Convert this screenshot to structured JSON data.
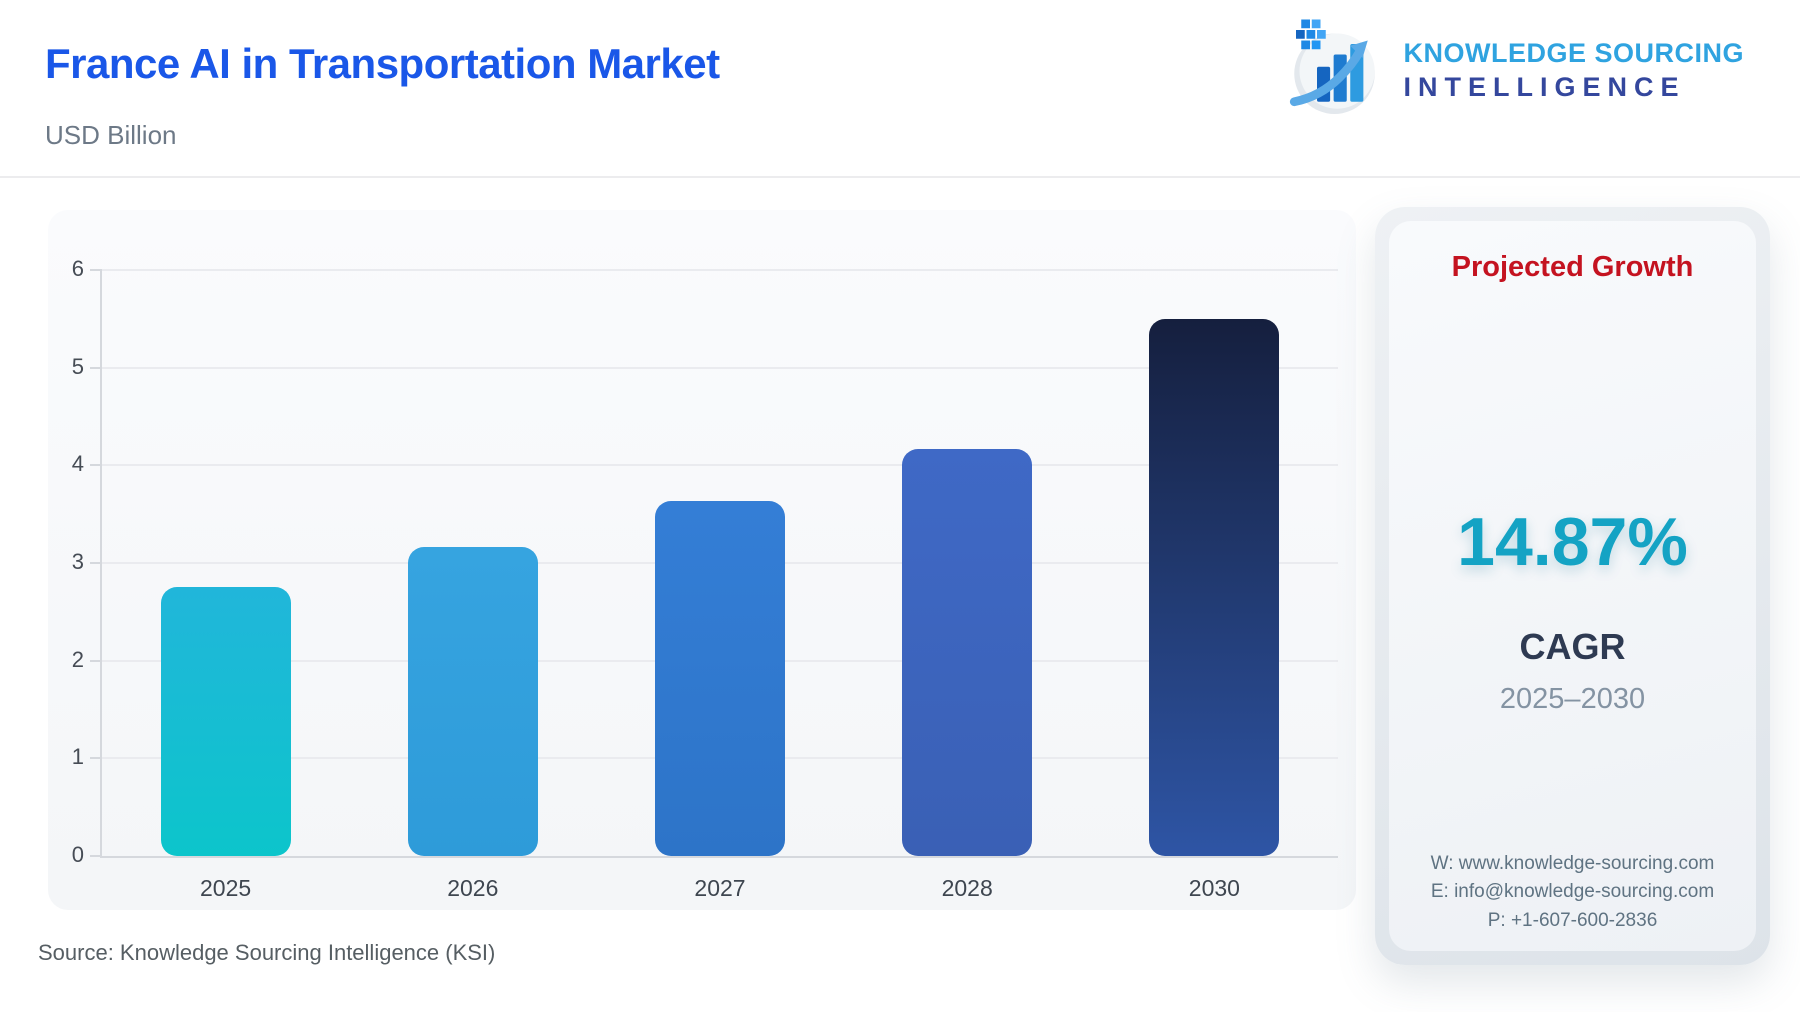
{
  "header": {
    "title": "France AI in Transportation Market",
    "subtitle": "USD Billion",
    "logo": {
      "line1": "KNOWLEDGE SOURCING",
      "line2": "INTELLIGENCE"
    }
  },
  "chart_data": {
    "type": "bar",
    "title": "France AI in Transportation Market",
    "ylabel": "USD Billion",
    "xlabel": "",
    "categories": [
      "2025",
      "2026",
      "2027",
      "2028",
      "2030"
    ],
    "values": [
      2.75,
      3.16,
      3.63,
      4.17,
      5.5
    ],
    "ylim": [
      0,
      6
    ],
    "yticks": [
      0,
      1,
      2,
      3,
      4,
      5,
      6
    ],
    "grid": true,
    "legend": "none",
    "bar_colors": [
      {
        "top": "#21b6da",
        "bottom": "#0cc5cb"
      },
      {
        "top": "#36a4e0",
        "bottom": "#2e9bd9"
      },
      {
        "top": "#347ed6",
        "bottom": "#2d74c8"
      },
      {
        "top": "#3f69c6",
        "bottom": "#3a60b5"
      },
      {
        "top": "#151f3e",
        "bottom": "#2e55a5"
      }
    ]
  },
  "growth_card": {
    "title": "Projected Growth",
    "title_color": "#c41320",
    "cagr_value": "14.87%",
    "cagr_value_color": "#14a3c4",
    "cagr_label": "CAGR",
    "period": "2025–2030",
    "contact": {
      "website": "W: www.knowledge-sourcing.com",
      "email": "E: info@knowledge-sourcing.com",
      "phone": "P: +1-607-600-2836"
    }
  },
  "footer": {
    "source": "Source: Knowledge Sourcing Intelligence (KSI)"
  },
  "colors": {
    "title_blue": "#1a57e8",
    "logo_light_blue": "#2fa3e0",
    "logo_navy": "#34479d",
    "panel_bg": "#f5f6f8",
    "axis_gray": "#d5d8dd"
  }
}
